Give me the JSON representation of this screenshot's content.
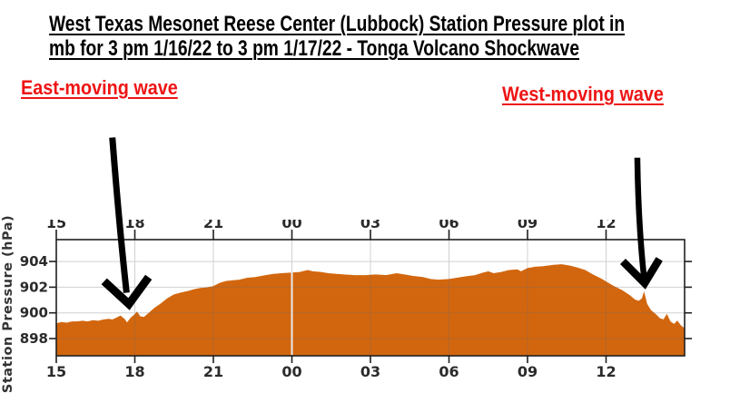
{
  "title": {
    "line1": "West Texas Mesonet Reese Center (Lubbock) Station Pressure plot in",
    "line2": "mb for 3 pm 1/16/22 to 3 pm 1/17/22 - Tonga Volcano Shockwave"
  },
  "chart_data": {
    "type": "area",
    "title": "West Texas Mesonet Reese Center (Lubbock) Station Pressure plot in mb for 3 pm 1/16/22 to 3 pm 1/17/22 - Tonga Volcano Shockwave",
    "xlabel": "",
    "ylabel": "Station Pressure (hPa)",
    "x_unit": "hours after 3 pm local, 1/16/22 through 3 pm 1/17/22",
    "xlim_hours": [
      0,
      24
    ],
    "ylim": [
      896.66,
      905.7
    ],
    "y_ticks": [
      898,
      900,
      902,
      904
    ],
    "x_tick_hours": [
      0,
      3,
      6,
      9,
      12,
      15,
      18,
      21
    ],
    "x_tick_labels": [
      "15",
      "18",
      "21",
      "00",
      "03",
      "06",
      "09",
      "12"
    ],
    "top_axis_labels_clipped": true,
    "grid": true,
    "midnight_gap_hour": 9,
    "annotations": {
      "east": {
        "label": "East-moving wave",
        "t_hours": 2.8,
        "clock": "~17:50 1/16",
        "pressure": 899.2
      },
      "west": {
        "label": "West-moving wave",
        "t_hours": 22.45,
        "clock": "~13:25 1/17",
        "pressure": 901.55
      }
    },
    "series": [
      {
        "name": "Station Pressure",
        "points": [
          [
            0.0,
            899.15
          ],
          [
            0.2,
            899.25
          ],
          [
            0.4,
            899.2
          ],
          [
            0.6,
            899.3
          ],
          [
            0.8,
            899.3
          ],
          [
            1.0,
            899.35
          ],
          [
            1.2,
            899.3
          ],
          [
            1.4,
            899.4
          ],
          [
            1.6,
            899.35
          ],
          [
            1.8,
            899.45
          ],
          [
            2.0,
            899.5
          ],
          [
            2.15,
            899.45
          ],
          [
            2.3,
            899.6
          ],
          [
            2.45,
            899.75
          ],
          [
            2.6,
            899.5
          ],
          [
            2.7,
            899.2
          ],
          [
            2.85,
            899.6
          ],
          [
            3.0,
            899.85
          ],
          [
            3.08,
            900.05
          ],
          [
            3.2,
            899.7
          ],
          [
            3.35,
            899.65
          ],
          [
            3.5,
            899.9
          ],
          [
            3.75,
            900.35
          ],
          [
            4.0,
            900.7
          ],
          [
            4.25,
            901.1
          ],
          [
            4.5,
            901.4
          ],
          [
            4.75,
            901.55
          ],
          [
            5.0,
            901.65
          ],
          [
            5.25,
            901.8
          ],
          [
            5.5,
            901.9
          ],
          [
            5.75,
            901.95
          ],
          [
            6.0,
            902.05
          ],
          [
            6.25,
            902.3
          ],
          [
            6.5,
            902.45
          ],
          [
            6.75,
            902.5
          ],
          [
            7.0,
            902.55
          ],
          [
            7.3,
            902.7
          ],
          [
            7.6,
            902.75
          ],
          [
            8.0,
            902.9
          ],
          [
            8.3,
            903.0
          ],
          [
            8.6,
            903.05
          ],
          [
            9.0,
            903.1
          ],
          [
            9.3,
            903.15
          ],
          [
            9.6,
            903.3
          ],
          [
            9.8,
            903.2
          ],
          [
            10.1,
            903.15
          ],
          [
            10.4,
            903.05
          ],
          [
            10.7,
            903.0
          ],
          [
            11.0,
            902.95
          ],
          [
            11.4,
            902.9
          ],
          [
            11.8,
            902.9
          ],
          [
            12.2,
            902.95
          ],
          [
            12.6,
            902.9
          ],
          [
            13.0,
            903.05
          ],
          [
            13.3,
            902.95
          ],
          [
            13.6,
            902.85
          ],
          [
            14.0,
            902.75
          ],
          [
            14.3,
            902.6
          ],
          [
            14.6,
            902.55
          ],
          [
            15.0,
            902.6
          ],
          [
            15.3,
            902.7
          ],
          [
            15.6,
            902.8
          ],
          [
            16.0,
            902.9
          ],
          [
            16.3,
            903.1
          ],
          [
            16.5,
            903.2
          ],
          [
            16.7,
            903.05
          ],
          [
            17.0,
            903.15
          ],
          [
            17.3,
            903.3
          ],
          [
            17.6,
            903.35
          ],
          [
            17.75,
            903.2
          ],
          [
            18.0,
            903.45
          ],
          [
            18.3,
            903.55
          ],
          [
            18.6,
            903.6
          ],
          [
            19.0,
            903.7
          ],
          [
            19.3,
            903.75
          ],
          [
            19.6,
            903.65
          ],
          [
            19.9,
            903.5
          ],
          [
            20.2,
            903.3
          ],
          [
            20.5,
            902.95
          ],
          [
            20.8,
            902.65
          ],
          [
            21.0,
            902.4
          ],
          [
            21.3,
            902.05
          ],
          [
            21.6,
            901.75
          ],
          [
            21.9,
            901.35
          ],
          [
            22.1,
            901.0
          ],
          [
            22.25,
            900.9
          ],
          [
            22.38,
            901.1
          ],
          [
            22.45,
            901.55
          ],
          [
            22.55,
            900.7
          ],
          [
            22.7,
            900.2
          ],
          [
            22.9,
            899.85
          ],
          [
            23.05,
            899.55
          ],
          [
            23.2,
            899.45
          ],
          [
            23.32,
            899.85
          ],
          [
            23.45,
            899.3
          ],
          [
            23.6,
            899.1
          ],
          [
            23.72,
            899.35
          ],
          [
            23.85,
            899.0
          ],
          [
            24.0,
            898.75
          ]
        ]
      }
    ],
    "colors": {
      "fill": "#d2660e",
      "gridline": "#696969",
      "frame": "#1f1f1f",
      "tick_label": "#2b2b2b",
      "axis_title": "#333333",
      "gap_line": "#eaeaea",
      "annotation_red": "#ee1414",
      "arrow": "#000000"
    }
  }
}
